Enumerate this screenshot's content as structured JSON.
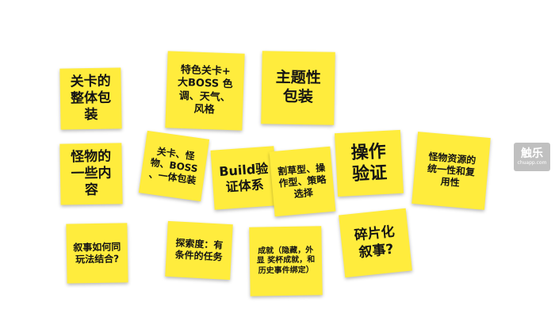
{
  "notes": {
    "level_whole_package": "关卡的\n整体包\n装",
    "featured_level_boss": "特色关卡+\n大BOSS 色\n调、天气、\n风格",
    "theme_package": "主题性\n包装",
    "monster_features": "怪物的\n一些内\n容",
    "level_monster_boss": "关卡、怪\n物、BOSS\n、一体包装",
    "build_system": "Build验\n证体系",
    "mowing_operation_strategy": "割草型、操\n作型、策略\n选择",
    "operation_verification": "操作\n验证",
    "monster_resources": "怪物资源的\n统一性和复\n用性",
    "narrative_gameplay": "叙事如何同\n玩法结合?",
    "exploration": "探索度：有\n条件的任务",
    "achievements": "成就（隐藏，外\n显 奖杯成就，和\n历史事件绑定）",
    "fragmented_narrative": "碎片化\n叙事?"
  },
  "watermark": {
    "main": "触乐",
    "sub": "chuapp.com"
  },
  "colors": {
    "note": "#ffec3d",
    "background": "#ffffff"
  }
}
